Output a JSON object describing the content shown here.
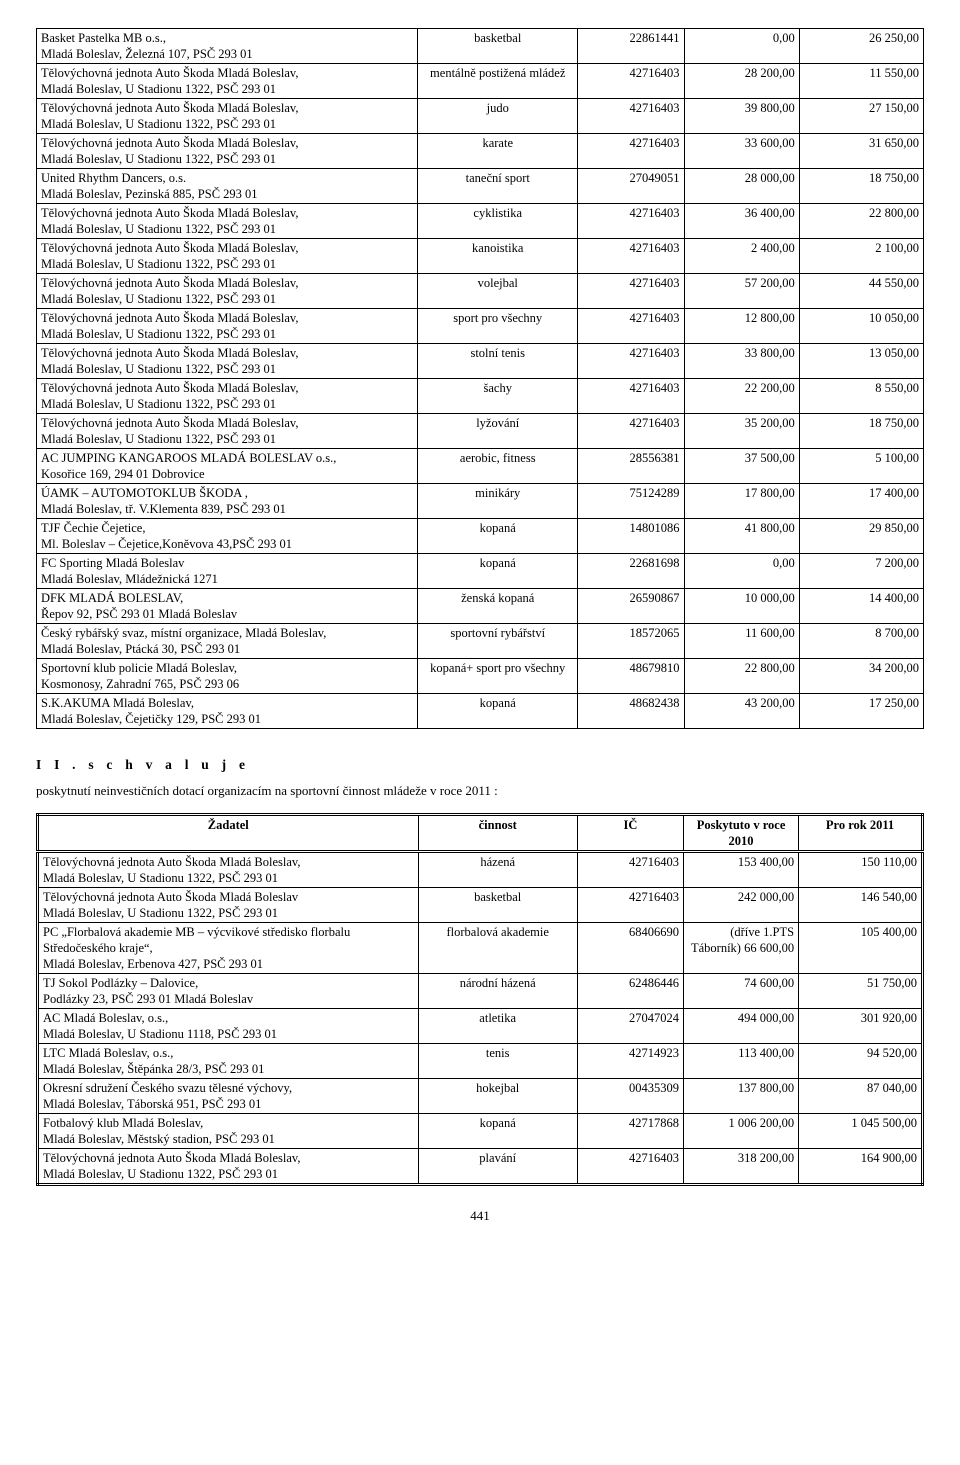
{
  "table1": {
    "rows": [
      {
        "name": "Basket Pastelka MB o.s.,\nMladá Boleslav, Železná 107, PSČ 293 01",
        "act": "basketbal",
        "id": "22861441",
        "v1": "0,00",
        "v2": "26 250,00"
      },
      {
        "name": "Tělovýchovná jednota Auto Škoda Mladá Boleslav,\nMladá Boleslav, U Stadionu 1322, PSČ 293 01",
        "act": "mentálně postižená mládež",
        "id": "42716403",
        "v1": "28 200,00",
        "v2": "11 550,00"
      },
      {
        "name": "Tělovýchovná jednota Auto Škoda Mladá Boleslav,\nMladá Boleslav, U Stadionu 1322, PSČ 293 01",
        "act": "judo",
        "id": "42716403",
        "v1": "39 800,00",
        "v2": "27 150,00"
      },
      {
        "name": "Tělovýchovná jednota Auto Škoda Mladá Boleslav,\nMladá Boleslav, U Stadionu 1322, PSČ 293 01",
        "act": "karate",
        "id": "42716403",
        "v1": "33 600,00",
        "v2": "31 650,00"
      },
      {
        "name": "United  Rhythm Dancers, o.s.\nMladá Boleslav, Pezinská 885, PSČ 293 01",
        "act": "taneční sport",
        "id": "27049051",
        "v1": "28 000,00",
        "v2": "18 750,00"
      },
      {
        "name": "Tělovýchovná jednota Auto Škoda Mladá Boleslav,\nMladá Boleslav, U Stadionu 1322, PSČ 293 01",
        "act": "cyklistika",
        "id": "42716403",
        "v1": "36 400,00",
        "v2": "22 800,00"
      },
      {
        "name": "Tělovýchovná jednota Auto Škoda Mladá Boleslav,\nMladá Boleslav, U Stadionu 1322, PSČ 293 01",
        "act": "kanoistika",
        "id": "42716403",
        "v1": "2 400,00",
        "v2": "2 100,00"
      },
      {
        "name": "Tělovýchovná jednota Auto Škoda Mladá Boleslav,\nMladá Boleslav, U Stadionu 1322, PSČ 293 01",
        "act": "volejbal",
        "id": "42716403",
        "v1": "57 200,00",
        "v2": "44 550,00"
      },
      {
        "name": "Tělovýchovná jednota Auto Škoda Mladá Boleslav,\nMladá Boleslav, U Stadionu 1322, PSČ 293 01",
        "act": "sport pro všechny",
        "id": "42716403",
        "v1": "12 800,00",
        "v2": "10 050,00"
      },
      {
        "name": "Tělovýchovná jednota Auto Škoda Mladá Boleslav,\nMladá Boleslav, U Stadionu 1322, PSČ 293 01",
        "act": "stolní tenis",
        "id": "42716403",
        "v1": "33 800,00",
        "v2": "13 050,00"
      },
      {
        "name": "Tělovýchovná jednota Auto Škoda Mladá Boleslav,\nMladá Boleslav, U Stadionu 1322, PSČ 293 01",
        "act": "šachy",
        "id": "42716403",
        "v1": "22 200,00",
        "v2": "8 550,00"
      },
      {
        "name": "Tělovýchovná jednota Auto Škoda Mladá Boleslav,\nMladá Boleslav, U Stadionu 1322, PSČ 293 01",
        "act": "lyžování",
        "id": "42716403",
        "v1": "35 200,00",
        "v2": "18 750,00"
      },
      {
        "name": "AC JUMPING KANGAROOS MLADÁ BOLESLAV o.s.,\nKosořice 169, 294 01 Dobrovice",
        "act": "aerobic, fitness",
        "id": "28556381",
        "v1": "37 500,00",
        "v2": "5 100,00"
      },
      {
        "name": "ÚAMK – AUTOMOTOKLUB  ŠKODA ,\nMladá Boleslav, tř. V.Klementa 839, PSČ 293 01",
        "act": "minikáry",
        "id": "75124289",
        "v1": "17 800,00",
        "v2": "17 400,00"
      },
      {
        "name": "TJF Čechie Čejetice,\nMl. Boleslav – Čejetice,Koněvova 43,PSČ 293 01",
        "act": "kopaná",
        "id": "14801086",
        "v1": "41 800,00",
        "v2": "29 850,00"
      },
      {
        "name": "FC Sporting Mladá Boleslav\nMladá Boleslav, Mládežnická 1271",
        "act": "kopaná",
        "id": "22681698",
        "v1": "0,00",
        "v2": "7 200,00"
      },
      {
        "name": "DFK MLADÁ BOLESLAV,\nŘepov 92, PSČ 293 01 Mladá Boleslav",
        "act": "ženská kopaná",
        "id": "26590867",
        "v1": "10 000,00",
        "v2": "14 400,00"
      },
      {
        "name": "Český rybářský svaz, místní organizace, Mladá Boleslav,\nMladá Boleslav, Ptácká 30, PSČ 293 01",
        "act": "sportovní rybářství",
        "id": "18572065",
        "v1": "11 600,00",
        "v2": "8 700,00"
      },
      {
        "name": "Sportovní klub policie Mladá Boleslav,\nKosmonosy, Zahradní 765, PSČ 293 06",
        "act": "kopaná+ sport pro všechny",
        "id": "48679810",
        "v1": "22 800,00",
        "v2": "34 200,00"
      },
      {
        "name": "S.K.AKUMA Mladá Boleslav,\nMladá Boleslav, Čejetičky 129, PSČ 293 01",
        "act": "kopaná",
        "id": "48682438",
        "v1": "43 200,00",
        "v2": "17 250,00"
      }
    ]
  },
  "section2": {
    "heading": "I I .    s c h v a l u j e",
    "para": "poskytnutí neinvestičních dotací organizacím na sportovní činnost mládeže v roce 2011 :"
  },
  "table2": {
    "head": {
      "c1": "Žadatel",
      "c2": "činnost",
      "c3": "IČ",
      "c4": "Poskytuto v roce 2010",
      "c5": "Pro rok 2011"
    },
    "rows": [
      {
        "name": "Tělovýchovná jednota Auto Škoda Mladá Boleslav,\nMladá Boleslav, U Stadionu 1322, PSČ 293 01",
        "act": "házená",
        "id": "42716403",
        "v1": "153 400,00",
        "v2": "150 110,00"
      },
      {
        "name": "Tělovýchovná jednota Auto Škoda Mladá Boleslav\nMladá Boleslav, U Stadionu 1322, PSČ 293 01",
        "act": "basketbal",
        "id": "42716403",
        "v1": "242 000,00",
        "v2": "146 540,00"
      },
      {
        "name": "PC „Florbalová akademie MB – výcvikové středisko florbalu Středočeského kraje“,\nMladá Boleslav, Erbenova 427, PSČ 293 01",
        "act": "florbalová akademie",
        "id": "68406690",
        "v1": "(dříve 1.PTS Táborník) 66 600,00",
        "v2": "105 400,00"
      },
      {
        "name": "TJ Sokol Podlázky – Dalovice,\nPodlázky 23,  PSČ 293 01 Mladá Boleslav",
        "act": "národní házená",
        "id": "62486446",
        "v1": "74 600,00",
        "v2": "51 750,00"
      },
      {
        "name": "AC Mladá Boleslav, o.s.,\nMladá Boleslav, U Stadionu 1118, PSČ 293 01",
        "act": "atletika",
        "id": "27047024",
        "v1": "494 000,00",
        "v2": "301 920,00"
      },
      {
        "name": "LTC Mladá Boleslav, o.s.,\nMladá Boleslav, Štěpánka 28/3, PSČ 293 01",
        "act": "tenis",
        "id": "42714923",
        "v1": "113 400,00",
        "v2": "94 520,00"
      },
      {
        "name": "Okresní sdružení Českého svazu tělesné výchovy,\nMladá Boleslav, Táborská 951, PSČ 293 01",
        "act": "hokejbal",
        "id": "00435309",
        "v1": "137 800,00",
        "v2": "87 040,00"
      },
      {
        "name": "Fotbalový klub Mladá Boleslav,\nMladá Boleslav, Městský stadion, PSČ 293 01",
        "act": "kopaná",
        "id": "42717868",
        "v1": "1 006 200,00",
        "v2": "1 045 500,00"
      },
      {
        "name": "Tělovýchovná jednota Auto Škoda Mladá Boleslav,\nMladá Boleslav, U Stadionu 1322, PSČ 293 01",
        "act": "plavání",
        "id": "42716403",
        "v1": "318 200,00",
        "v2": "164 900,00"
      }
    ]
  },
  "page_number": "441"
}
